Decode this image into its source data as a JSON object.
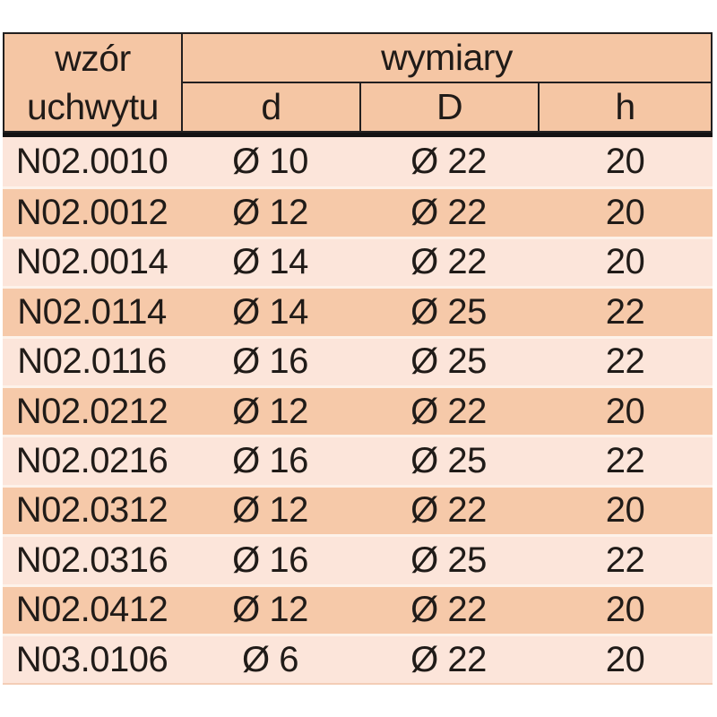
{
  "table": {
    "header": {
      "pattern_col_line1": "wzór",
      "pattern_col_line2": "uchwytu",
      "dimensions_group": "wymiary",
      "dim_cols": {
        "d": "d",
        "D": "D",
        "h": "h"
      }
    },
    "rows": [
      {
        "model": "N02.0010",
        "d": "Ø 10",
        "D": "Ø 22",
        "h": "20"
      },
      {
        "model": "N02.0012",
        "d": "Ø 12",
        "D": "Ø 22",
        "h": "20"
      },
      {
        "model": "N02.0014",
        "d": "Ø 14",
        "D": "Ø 22",
        "h": "20"
      },
      {
        "model": "N02.0114",
        "d": "Ø 14",
        "D": "Ø 25",
        "h": "22"
      },
      {
        "model": "N02.0116",
        "d": "Ø 16",
        "D": "Ø 25",
        "h": "22"
      },
      {
        "model": "N02.0212",
        "d": "Ø 12",
        "D": "Ø 22",
        "h": "20"
      },
      {
        "model": "N02.0216",
        "d": "Ø 16",
        "D": "Ø 25",
        "h": "22"
      },
      {
        "model": "N02.0312",
        "d": "Ø 12",
        "D": "Ø 22",
        "h": "20"
      },
      {
        "model": "N02.0316",
        "d": "Ø 16",
        "D": "Ø 25",
        "h": "22"
      },
      {
        "model": "N02.0412",
        "d": "Ø 12",
        "D": "Ø 22",
        "h": "20"
      },
      {
        "model": "N03.0106",
        "d": "Ø 6",
        "D": "Ø 22",
        "h": "20"
      }
    ],
    "colors": {
      "header_bg": "#f5c6a4",
      "row_light_bg": "#fce5da",
      "row_dark_bg": "#f6c9a9",
      "row_separator": "#fdf2ea",
      "border_dark": "#221f1f",
      "thick_divider": "#141212",
      "text": "#201b18",
      "page_bg": "#ffffff"
    }
  },
  "chart_data": {
    "type": "table",
    "title": "",
    "columns": [
      "wzór uchwytu",
      "d",
      "D",
      "h"
    ],
    "column_group": {
      "label": "wymiary",
      "spans": [
        "d",
        "D",
        "h"
      ]
    },
    "rows": [
      [
        "N02.0010",
        "Ø 10",
        "Ø 22",
        "20"
      ],
      [
        "N02.0012",
        "Ø 12",
        "Ø 22",
        "20"
      ],
      [
        "N02.0014",
        "Ø 14",
        "Ø 22",
        "20"
      ],
      [
        "N02.0114",
        "Ø 14",
        "Ø 25",
        "22"
      ],
      [
        "N02.0116",
        "Ø 16",
        "Ø 25",
        "22"
      ],
      [
        "N02.0212",
        "Ø 12",
        "Ø 22",
        "20"
      ],
      [
        "N02.0216",
        "Ø 16",
        "Ø 25",
        "22"
      ],
      [
        "N02.0312",
        "Ø 12",
        "Ø 22",
        "20"
      ],
      [
        "N02.0316",
        "Ø 16",
        "Ø 25",
        "22"
      ],
      [
        "N02.0412",
        "Ø 12",
        "Ø 22",
        "20"
      ],
      [
        "N03.0106",
        "Ø 6",
        "Ø 22",
        "20"
      ]
    ]
  }
}
